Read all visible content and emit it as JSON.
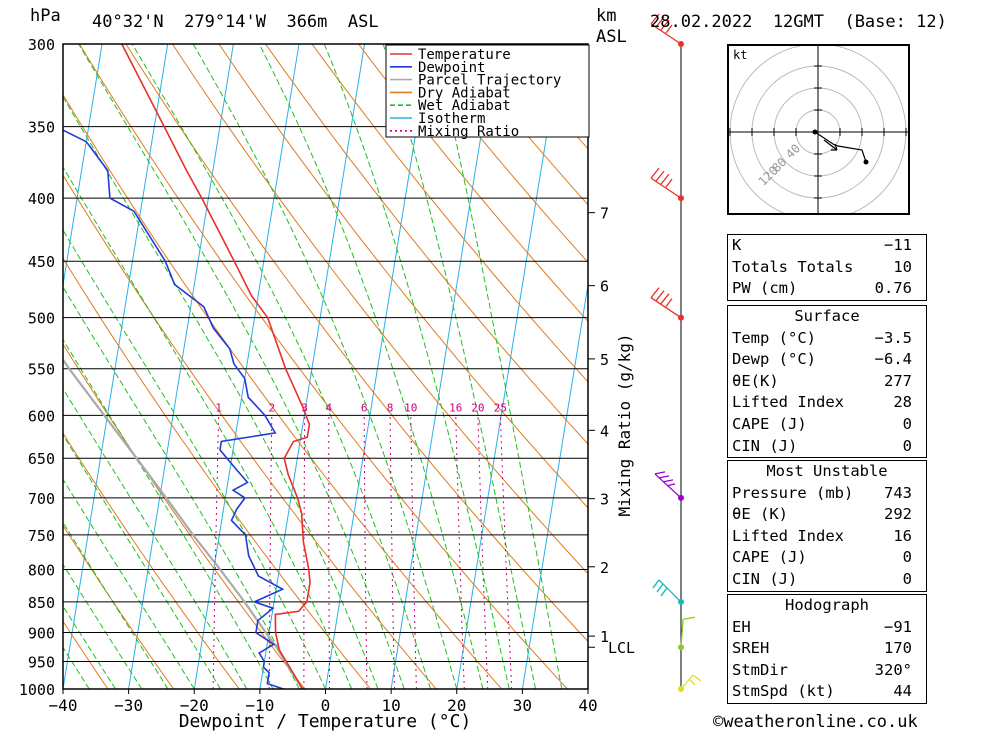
{
  "header": {
    "pressure_unit": "hPa",
    "location": "40°32'N  279°14'W  366m  ASL",
    "height_unit_1": "km",
    "height_unit_2": "ASL",
    "datetime": "28.02.2022  12GMT  (Base: 12)"
  },
  "colors": {
    "temperature": "#e8302a",
    "dewpoint": "#1f3ad6",
    "parcel": "#aaaaaa",
    "dry_adiabat": "#e07b20",
    "wet_adiabat": "#1fbf1f",
    "isotherm": "#2ab0e8",
    "mixing_ratio": "#cc0077"
  },
  "chart_data": {
    "type": "line",
    "xlabel": "Dewpoint / Temperature (°C)",
    "ylabel": "hPa",
    "mixing_axis_label": "Mixing Ratio (g/kg)",
    "xlim": [
      -40,
      40
    ],
    "ylim": [
      1000,
      300
    ],
    "x_ticks": [
      "−40",
      "−30",
      "−20",
      "−10",
      "0",
      "10",
      "20",
      "30",
      "40"
    ],
    "x_tick_values": [
      -40,
      -30,
      -20,
      -10,
      0,
      10,
      20,
      30,
      40
    ],
    "pressure_levels": [
      300,
      350,
      400,
      450,
      500,
      550,
      600,
      650,
      700,
      750,
      800,
      850,
      900,
      950,
      1000
    ],
    "km_ticks": [
      {
        "km": "1",
        "p": 906
      },
      {
        "km": "2",
        "p": 796
      },
      {
        "km": "3",
        "p": 701
      },
      {
        "km": "4",
        "p": 617
      },
      {
        "km": "5",
        "p": 540
      },
      {
        "km": "6",
        "p": 471
      },
      {
        "km": "7",
        "p": 411
      }
    ],
    "lcl_label": "LCL",
    "lcl_pressure": 925,
    "mixing_ratio_labels": [
      "1",
      "2",
      "3",
      "4",
      "6",
      "8",
      "10",
      "16",
      "20",
      "25"
    ],
    "mixing_ratio_values": [
      1,
      2,
      3,
      4,
      6,
      8,
      10,
      16,
      20,
      25
    ],
    "legend": [
      "Temperature",
      "Dewpoint",
      "Parcel Trajectory",
      "Dry Adiabat",
      "Wet Adiabat",
      "Isotherm",
      "Mixing Ratio"
    ],
    "series": [
      {
        "name": "Temperature",
        "points": [
          [
            1000,
            -3.5
          ],
          [
            960,
            -6
          ],
          [
            930,
            -8
          ],
          [
            900,
            -9
          ],
          [
            870,
            -9.5
          ],
          [
            865,
            -6
          ],
          [
            850,
            -5
          ],
          [
            820,
            -5
          ],
          [
            800,
            -5.5
          ],
          [
            760,
            -7
          ],
          [
            720,
            -8
          ],
          [
            700,
            -9
          ],
          [
            670,
            -11
          ],
          [
            650,
            -12
          ],
          [
            630,
            -11
          ],
          [
            625,
            -9
          ],
          [
            610,
            -9
          ],
          [
            590,
            -10.5
          ],
          [
            550,
            -14
          ],
          [
            500,
            -18
          ],
          [
            480,
            -21
          ],
          [
            450,
            -24.5
          ],
          [
            400,
            -31
          ],
          [
            380,
            -34
          ],
          [
            350,
            -38.5
          ],
          [
            300,
            -47
          ]
        ]
      },
      {
        "name": "Dewpoint",
        "points": [
          [
            1000,
            -6.4
          ],
          [
            990,
            -9
          ],
          [
            970,
            -9
          ],
          [
            960,
            -10
          ],
          [
            950,
            -10
          ],
          [
            935,
            -11
          ],
          [
            920,
            -9
          ],
          [
            900,
            -12
          ],
          [
            880,
            -12
          ],
          [
            860,
            -10
          ],
          [
            850,
            -13
          ],
          [
            830,
            -9
          ],
          [
            810,
            -13
          ],
          [
            780,
            -15
          ],
          [
            750,
            -16
          ],
          [
            730,
            -18.5
          ],
          [
            715,
            -18
          ],
          [
            700,
            -17
          ],
          [
            690,
            -19
          ],
          [
            680,
            -17
          ],
          [
            660,
            -19.5
          ],
          [
            640,
            -22
          ],
          [
            630,
            -22
          ],
          [
            620,
            -14
          ],
          [
            600,
            -16
          ],
          [
            580,
            -19
          ],
          [
            560,
            -20
          ],
          [
            545,
            -22
          ],
          [
            530,
            -23
          ],
          [
            510,
            -26
          ],
          [
            490,
            -28
          ],
          [
            470,
            -33
          ],
          [
            450,
            -35
          ],
          [
            410,
            -41
          ],
          [
            400,
            -45
          ],
          [
            380,
            -46
          ],
          [
            360,
            -50
          ],
          [
            350,
            -55
          ],
          [
            300,
            -60
          ]
        ]
      },
      {
        "name": "Parcel Trajectory",
        "points": [
          [
            1000,
            -3.5
          ],
          [
            925,
            -8.5
          ],
          [
            900,
            -10.5
          ],
          [
            850,
            -14.5
          ],
          [
            800,
            -19
          ],
          [
            750,
            -24
          ],
          [
            700,
            -29
          ],
          [
            650,
            -34.5
          ],
          [
            600,
            -40.5
          ],
          [
            550,
            -47
          ],
          [
            500,
            -53.5
          ],
          [
            450,
            -61
          ],
          [
            400,
            -69
          ],
          [
            350,
            -78
          ],
          [
            300,
            -88
          ]
        ]
      }
    ]
  },
  "wind_barbs": [
    {
      "pressure": 300,
      "color": "#e8302a"
    },
    {
      "pressure": 400,
      "color": "#e8302a"
    },
    {
      "pressure": 500,
      "color": "#e8302a"
    },
    {
      "pressure": 700,
      "color": "#9900cc"
    },
    {
      "pressure": 850,
      "color": "#11bbbb"
    },
    {
      "pressure": 925,
      "color": "#88cc22"
    },
    {
      "pressure": 1000,
      "color": "#dddd22"
    }
  ],
  "hodograph": {
    "unit_label": "kt",
    "ring_labels": [
      "40",
      "80",
      "120"
    ]
  },
  "indices": {
    "rows": [
      {
        "label": "K",
        "value": "−11"
      },
      {
        "label": "Totals Totals",
        "value": "10"
      },
      {
        "label": "PW (cm)",
        "value": "0.76"
      }
    ]
  },
  "surface": {
    "title": "Surface",
    "rows": [
      {
        "label": "Temp (°C)",
        "value": "−3.5"
      },
      {
        "label": "Dewp (°C)",
        "value": "−6.4"
      },
      {
        "label": "θE(K)",
        "value": "277"
      },
      {
        "label": "Lifted Index",
        "value": "28"
      },
      {
        "label": "CAPE (J)",
        "value": "0"
      },
      {
        "label": "CIN (J)",
        "value": "0"
      }
    ]
  },
  "most_unstable": {
    "title": "Most Unstable",
    "rows": [
      {
        "label": "Pressure (mb)",
        "value": "743"
      },
      {
        "label": "θE (K)",
        "value": "292"
      },
      {
        "label": "Lifted Index",
        "value": "16"
      },
      {
        "label": "CAPE (J)",
        "value": "0"
      },
      {
        "label": "CIN (J)",
        "value": "0"
      }
    ]
  },
  "hodograph_table": {
    "title": "Hodograph",
    "rows": [
      {
        "label": "EH",
        "value": "−91"
      },
      {
        "label": "SREH",
        "value": "170"
      },
      {
        "label": "StmDir",
        "value": "320°"
      },
      {
        "label": "StmSpd (kt)",
        "value": "44"
      }
    ]
  },
  "footer": {
    "copyright": "©weatheronline.co.uk"
  }
}
